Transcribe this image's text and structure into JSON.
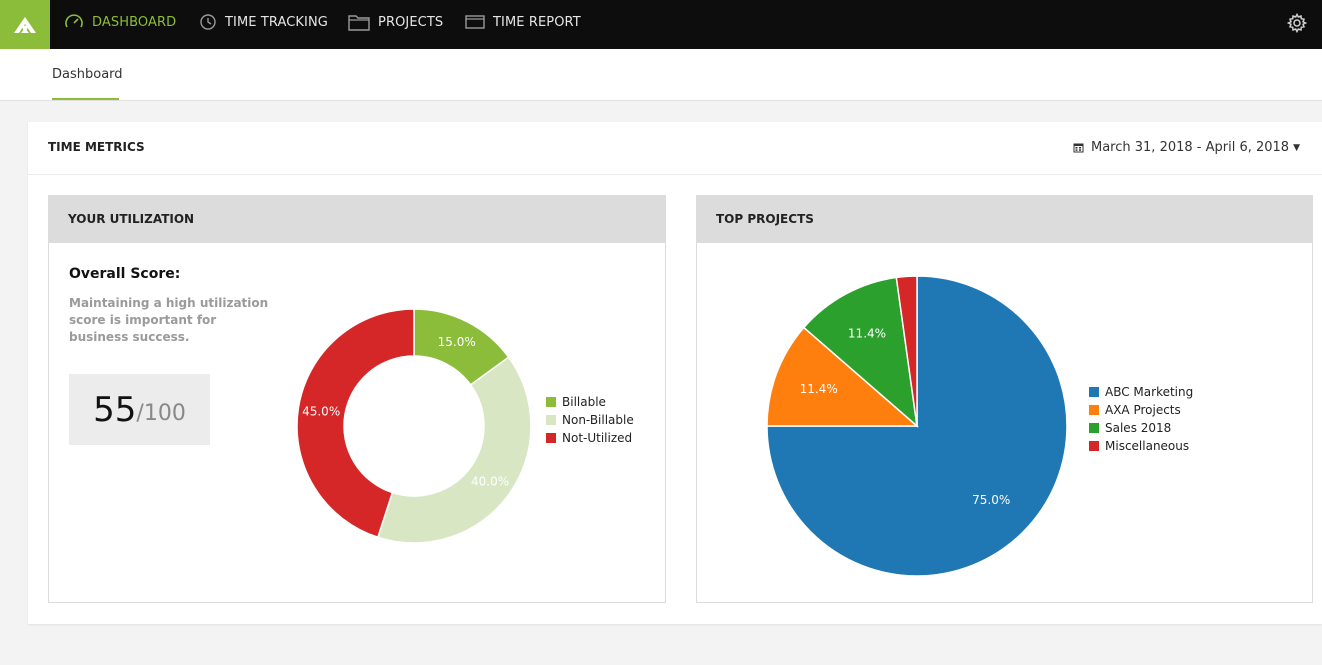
{
  "nav": {
    "items": [
      {
        "label": "DASHBOARD",
        "icon": "speedometer-icon",
        "active": true
      },
      {
        "label": "TIME TRACKING",
        "icon": "clock-icon",
        "active": false
      },
      {
        "label": "PROJECTS",
        "icon": "folder-icon",
        "active": false
      },
      {
        "label": "TIME REPORT",
        "icon": "report-icon",
        "active": false
      }
    ],
    "accent": "#8cbd3a"
  },
  "subnav": {
    "tab": "Dashboard"
  },
  "metrics": {
    "title": "TIME METRICS",
    "date_range": "March 31, 2018 - April 6, 2018"
  },
  "utilization": {
    "title": "YOUR UTILIZATION",
    "overall_label": "Overall Score:",
    "description": "Maintaining a high utilization score is important for business success.",
    "score": "55",
    "score_max": "/100"
  },
  "top_projects": {
    "title": "TOP PROJECTS"
  },
  "chart_data": [
    {
      "type": "pie",
      "subtype": "donut",
      "title": "",
      "series": [
        {
          "name": "Billable",
          "value": 15.0,
          "label": "15.0%",
          "color": "#8cbd3a"
        },
        {
          "name": "Non-Billable",
          "value": 40.0,
          "label": "40.0%",
          "color": "#d8e6c3"
        },
        {
          "name": "Not-Utilized",
          "value": 45.0,
          "label": "45.0%",
          "color": "#d62728"
        }
      ],
      "legend": "right"
    },
    {
      "type": "pie",
      "title": "",
      "series": [
        {
          "name": "ABC Marketing",
          "value": 75.0,
          "label": "75.0%",
          "color": "#1f77b4"
        },
        {
          "name": "AXA Projects",
          "value": 11.4,
          "label": "11.4%",
          "color": "#ff7f0e"
        },
        {
          "name": "Sales 2018",
          "value": 11.4,
          "label": "11.4%",
          "color": "#2ca02c"
        },
        {
          "name": "Miscellaneous",
          "value": 2.2,
          "label": "",
          "color": "#d62728"
        }
      ],
      "legend": "right"
    }
  ]
}
